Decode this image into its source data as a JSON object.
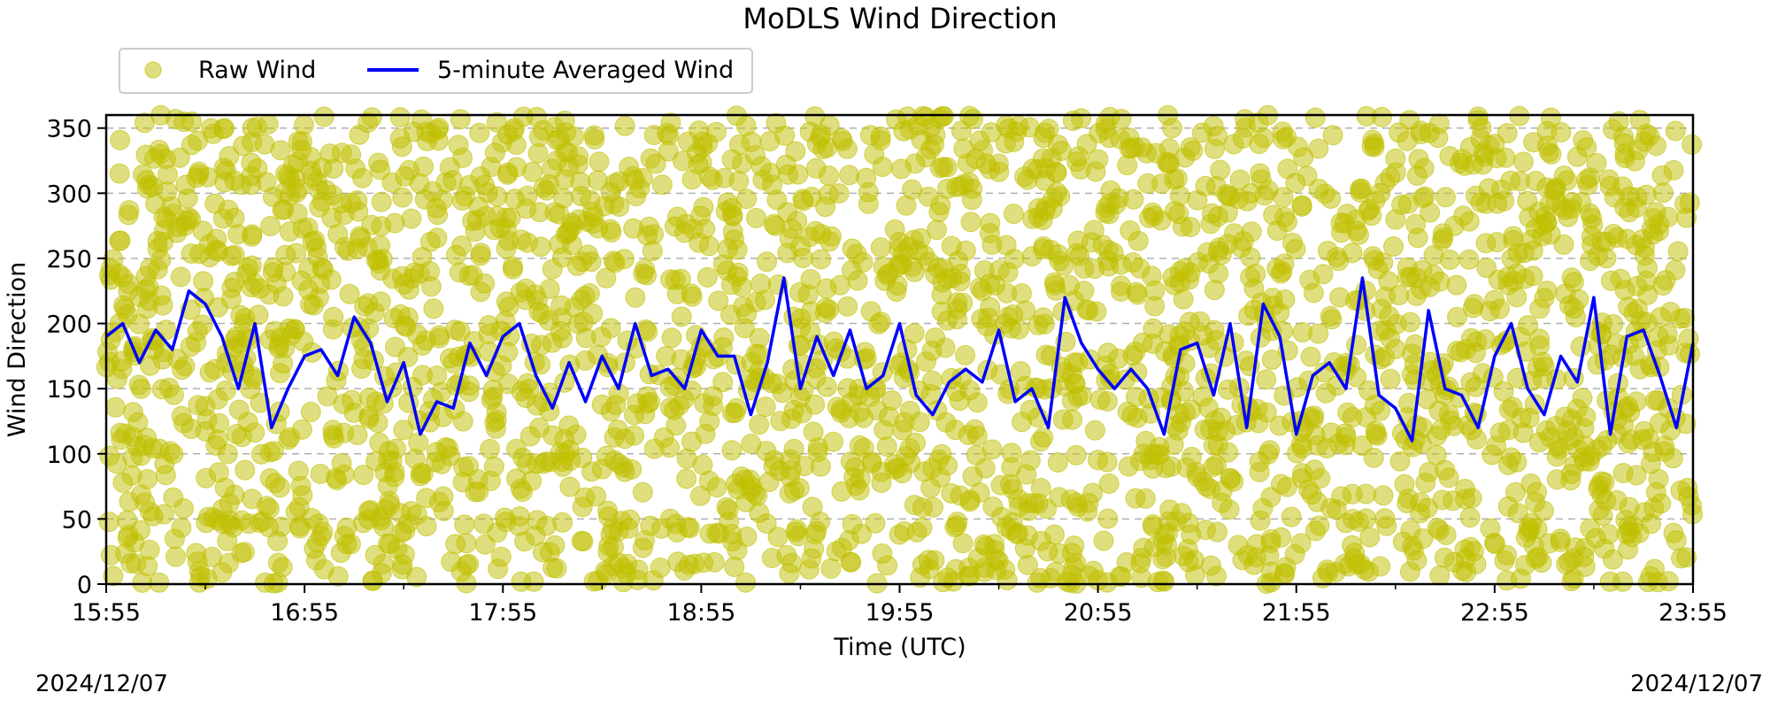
{
  "chart_data": {
    "type": "scatter",
    "title": "MoDLS Wind Direction",
    "xlabel": "Time (UTC)",
    "ylabel": "Wind Direction",
    "ylim": [
      0,
      360
    ],
    "xlim": [
      "15:55",
      "23:55"
    ],
    "xticks": [
      "15:55",
      "16:55",
      "17:55",
      "18:55",
      "19:55",
      "20:55",
      "21:55",
      "22:55",
      "23:55"
    ],
    "yticks": [
      0,
      50,
      100,
      150,
      200,
      250,
      300,
      350
    ],
    "grid": "horizontal dashed",
    "legend": {
      "placement": "top-left, above plot",
      "entries": [
        "Raw Wind",
        "5-minute Averaged Wind"
      ]
    },
    "date_left": "2024/12/07",
    "date_right": "2024/12/07",
    "series": [
      {
        "name": "Raw Wind",
        "kind": "scatter",
        "color": "#bfbf00",
        "alpha": 0.5,
        "note": "dense scatter spanning 0–360 throughout the time range"
      },
      {
        "name": "5-minute Averaged Wind",
        "kind": "line",
        "color": "#0000ff",
        "x": [
          "15:55",
          "16:00",
          "16:05",
          "16:10",
          "16:15",
          "16:20",
          "16:25",
          "16:30",
          "16:35",
          "16:40",
          "16:45",
          "16:50",
          "16:55",
          "17:00",
          "17:05",
          "17:10",
          "17:15",
          "17:20",
          "17:25",
          "17:30",
          "17:35",
          "17:40",
          "17:45",
          "17:50",
          "17:55",
          "18:00",
          "18:05",
          "18:10",
          "18:15",
          "18:20",
          "18:25",
          "18:30",
          "18:35",
          "18:40",
          "18:45",
          "18:50",
          "18:55",
          "19:00",
          "19:05",
          "19:10",
          "19:15",
          "19:20",
          "19:25",
          "19:30",
          "19:35",
          "19:40",
          "19:45",
          "19:50",
          "19:55",
          "20:00",
          "20:05",
          "20:10",
          "20:15",
          "20:20",
          "20:25",
          "20:30",
          "20:35",
          "20:40",
          "20:45",
          "20:50",
          "20:55",
          "21:00",
          "21:05",
          "21:10",
          "21:15",
          "21:20",
          "21:25",
          "21:30",
          "21:35",
          "21:40",
          "21:45",
          "21:50",
          "21:55",
          "22:00",
          "22:05",
          "22:10",
          "22:15",
          "22:20",
          "22:25",
          "22:30",
          "22:35",
          "22:40",
          "22:45",
          "22:50",
          "22:55",
          "23:00",
          "23:05",
          "23:10",
          "23:15",
          "23:20",
          "23:25",
          "23:30",
          "23:35",
          "23:40",
          "23:45",
          "23:50",
          "23:55"
        ],
        "values": [
          190,
          200,
          170,
          195,
          180,
          225,
          215,
          190,
          150,
          200,
          120,
          150,
          175,
          180,
          160,
          205,
          185,
          140,
          170,
          115,
          140,
          135,
          185,
          160,
          190,
          200,
          160,
          135,
          170,
          140,
          175,
          150,
          200,
          160,
          165,
          150,
          195,
          175,
          175,
          130,
          170,
          235,
          150,
          190,
          160,
          195,
          150,
          160,
          200,
          145,
          130,
          155,
          165,
          155,
          195,
          140,
          150,
          120,
          220,
          185,
          165,
          150,
          165,
          150,
          115,
          180,
          185,
          145,
          200,
          120,
          215,
          190,
          115,
          160,
          170,
          150,
          235,
          145,
          135,
          110,
          210,
          150,
          145,
          120,
          175,
          200,
          150,
          130,
          175,
          155,
          220,
          115,
          190,
          195,
          160,
          120,
          185
        ]
      }
    ]
  }
}
